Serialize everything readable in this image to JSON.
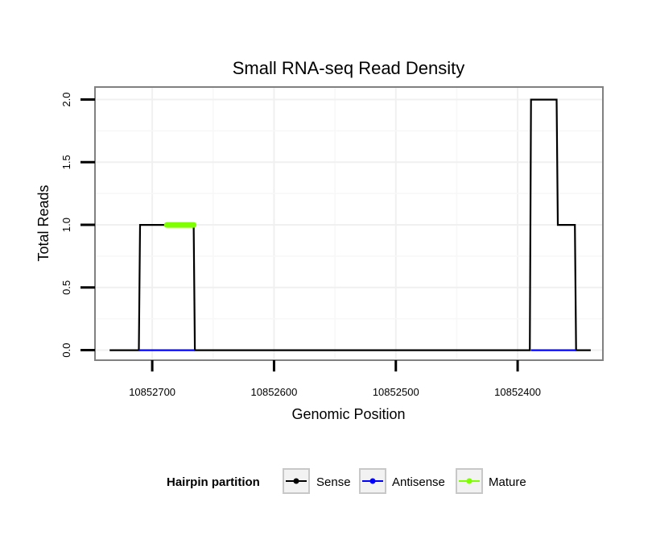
{
  "chart_data": {
    "type": "line",
    "title": "Small RNA-seq Read Density",
    "xlabel": "Genomic Position",
    "ylabel": "Total Reads",
    "x_reversed": true,
    "xlim": [
      10852747,
      10852330
    ],
    "ylim": [
      -0.08,
      2.1
    ],
    "xticks": [
      10852700,
      10852600,
      10852500,
      10852400
    ],
    "xtick_labels": [
      "10852700",
      "10852600",
      "10852500",
      "10852400"
    ],
    "yticks": [
      0,
      0.5,
      1,
      1.5,
      2
    ],
    "ytick_labels": [
      "0.0",
      "0.5",
      "1.0",
      "1.5",
      "2.0"
    ],
    "grid": true,
    "legend": {
      "title": "Hairpin partition",
      "placement": "bottom"
    },
    "series": [
      {
        "name": "Sense",
        "color": "#000000",
        "x": [
          10852735,
          10852711,
          10852710,
          10852666,
          10852665,
          10852390,
          10852389,
          10852368,
          10852367,
          10852353,
          10852352,
          10852340
        ],
        "y": [
          0,
          0,
          1,
          1,
          0,
          0,
          2,
          2,
          1,
          1,
          0,
          0
        ]
      },
      {
        "name": "Antisense",
        "color": "#0000ff",
        "x": [
          10852711,
          10852665
        ],
        "y": [
          0,
          0
        ]
      },
      {
        "name": "Antisense",
        "color": "#0000ff",
        "x": [
          10852389,
          10852352
        ],
        "y": [
          0,
          0
        ]
      },
      {
        "name": "Mature",
        "color": "#7fff00",
        "x": [
          10852688,
          10852666
        ],
        "y": [
          1,
          1
        ]
      }
    ]
  }
}
